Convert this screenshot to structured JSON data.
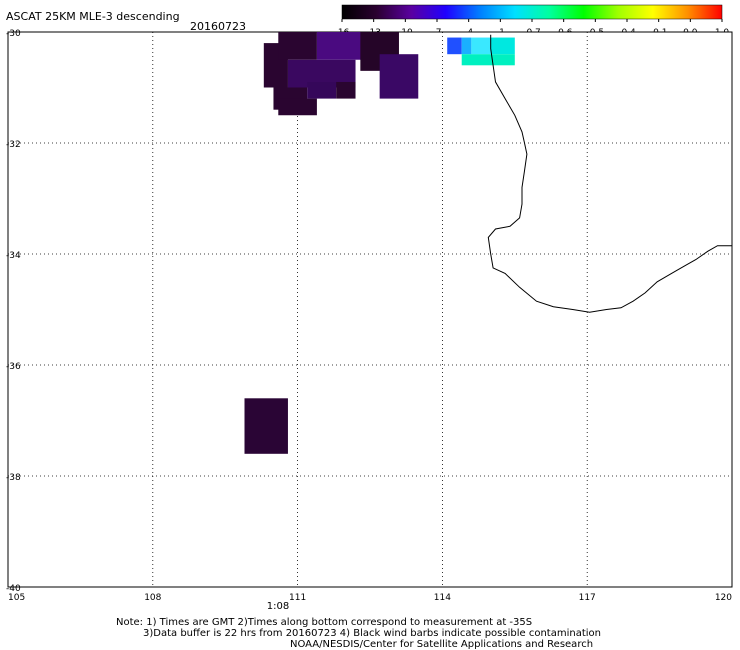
{
  "header": {
    "title": "ASCAT 25KM MLE-3 descending",
    "date": "20160723"
  },
  "colorbar": {
    "tick_labels": [
      "-16",
      "-13",
      "-10",
      "-7",
      "-4",
      "-1",
      "-0.7",
      "-0.6",
      "-0.5",
      "-0.4",
      "-0.1",
      "0.0",
      "1.0"
    ],
    "colors": [
      "#000000",
      "#2a0030",
      "#5a00a0",
      "#2000ff",
      "#0080ff",
      "#00e0ff",
      "#00ffa0",
      "#00ff00",
      "#a0ff00",
      "#ffff00",
      "#ff9000",
      "#ff0000"
    ]
  },
  "map": {
    "lon_range": [
      105,
      120
    ],
    "lat_range": [
      -40,
      -30
    ],
    "lon_ticks": [
      "105",
      "108",
      "111",
      "114",
      "117",
      "120"
    ],
    "lat_ticks": [
      "-30",
      "-32",
      "-34",
      "-36",
      "-38",
      "-40"
    ],
    "time_label": "1:08",
    "time_label_color": "#cc2200",
    "coast_color": "#000000",
    "cells": [
      {
        "lon": [
          110.3,
          110.8
        ],
        "lat": [
          -30.2,
          -31.0
        ],
        "color": "#2a0530"
      },
      {
        "lon": [
          110.6,
          111.4
        ],
        "lat": [
          -30.0,
          -30.5
        ],
        "color": "#2a0530"
      },
      {
        "lon": [
          111.4,
          112.5
        ],
        "lat": [
          -30.0,
          -30.5
        ],
        "color": "#4a0a80"
      },
      {
        "lon": [
          112.3,
          113.1
        ],
        "lat": [
          -30.0,
          -30.7
        ],
        "color": "#250528"
      },
      {
        "lon": [
          110.8,
          112.2
        ],
        "lat": [
          -30.5,
          -31.0
        ],
        "color": "#3a0860"
      },
      {
        "lon": [
          110.5,
          111.2
        ],
        "lat": [
          -31.0,
          -31.4
        ],
        "color": "#2a0530"
      },
      {
        "lon": [
          111.2,
          111.8
        ],
        "lat": [
          -30.9,
          -31.2
        ],
        "color": "#35075a"
      },
      {
        "lon": [
          111.8,
          112.2
        ],
        "lat": [
          -30.9,
          -31.2
        ],
        "color": "#2a0530"
      },
      {
        "lon": [
          112.7,
          113.5
        ],
        "lat": [
          -30.4,
          -31.2
        ],
        "color": "#3a0865"
      },
      {
        "lon": [
          110.6,
          111.4
        ],
        "lat": [
          -31.2,
          -31.5
        ],
        "color": "#2a0530"
      },
      {
        "lon": [
          114.1,
          114.4
        ],
        "lat": [
          -30.1,
          -30.4
        ],
        "color": "#2050ff"
      },
      {
        "lon": [
          114.4,
          114.6
        ],
        "lat": [
          -30.1,
          -30.4
        ],
        "color": "#1ab0ff"
      },
      {
        "lon": [
          114.6,
          115.0
        ],
        "lat": [
          -30.1,
          -30.4
        ],
        "color": "#3ae8ff"
      },
      {
        "lon": [
          115.0,
          115.5
        ],
        "lat": [
          -30.1,
          -30.4
        ],
        "color": "#00e8e0"
      },
      {
        "lon": [
          114.4,
          115.5
        ],
        "lat": [
          -30.4,
          -30.6
        ],
        "color": "#00f0c0"
      },
      {
        "lon": [
          109.9,
          110.8
        ],
        "lat": [
          -36.6,
          -37.6
        ],
        "color": "#2a0535"
      }
    ],
    "coastline": [
      [
        115.0,
        -30.05
      ],
      [
        115.0,
        -30.3
      ],
      [
        115.05,
        -30.6
      ],
      [
        115.1,
        -30.9
      ],
      [
        115.3,
        -31.2
      ],
      [
        115.5,
        -31.5
      ],
      [
        115.65,
        -31.8
      ],
      [
        115.7,
        -32.0
      ],
      [
        115.75,
        -32.2
      ],
      [
        115.7,
        -32.5
      ],
      [
        115.65,
        -32.8
      ],
      [
        115.65,
        -33.1
      ],
      [
        115.6,
        -33.35
      ],
      [
        115.4,
        -33.5
      ],
      [
        115.1,
        -33.55
      ],
      [
        114.95,
        -33.7
      ],
      [
        115.0,
        -34.0
      ],
      [
        115.05,
        -34.25
      ],
      [
        115.3,
        -34.35
      ],
      [
        115.6,
        -34.6
      ],
      [
        115.95,
        -34.85
      ],
      [
        116.3,
        -34.95
      ],
      [
        116.7,
        -35.0
      ],
      [
        117.05,
        -35.05
      ],
      [
        117.4,
        -35.0
      ],
      [
        117.7,
        -34.97
      ],
      [
        117.95,
        -34.85
      ],
      [
        118.2,
        -34.7
      ],
      [
        118.45,
        -34.5
      ],
      [
        118.65,
        -34.4
      ],
      [
        118.85,
        -34.3
      ],
      [
        119.05,
        -34.2
      ],
      [
        119.25,
        -34.1
      ],
      [
        119.5,
        -33.95
      ],
      [
        119.7,
        -33.85
      ],
      [
        119.85,
        -33.85
      ],
      [
        120.0,
        -33.85
      ]
    ]
  },
  "notes": {
    "line1": "Note: 1) Times are GMT 2)Times along bottom correspond to measurement at -35S",
    "line2": "3)Data buffer is 22 hrs from 20160723 4) Black wind barbs indicate possible contamination",
    "line3": "NOAA/NESDIS/Center for Satellite Applications and Research"
  }
}
